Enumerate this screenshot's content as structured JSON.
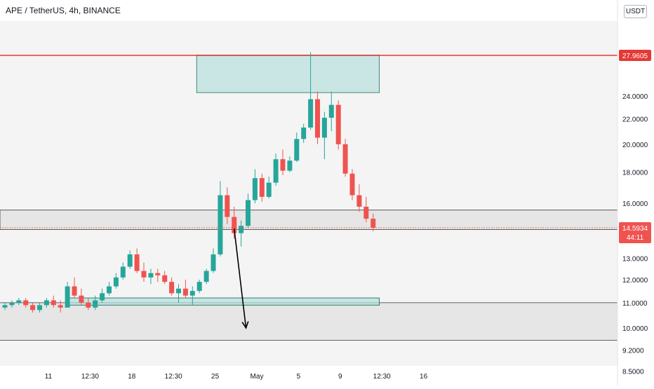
{
  "header": {
    "title": "APE / TetherUS, 4h, BINANCE",
    "currency": "USDT"
  },
  "colors": {
    "up": "#26a69a",
    "down": "#ef5350",
    "resistance_line": "#e53935",
    "supply_zone": "#b2dfdb",
    "zone_border": "#1f6f5f",
    "grey_band": "#e6e6e6",
    "current_price_line": "#ef5350",
    "arrow": "#000000"
  },
  "chart_data": {
    "type": "candlestick",
    "symbol": "APE/USDT",
    "timeframe": "4h",
    "scale": "log",
    "ylim": [
      8.2,
      31
    ],
    "yticks": [
      "8.5000",
      "9.2000",
      "10.0000",
      "11.0000",
      "12.0000",
      "13.0000",
      "16.0000",
      "18.0000",
      "20.0000",
      "22.0000",
      "24.0000"
    ],
    "ytick_values": [
      8.5,
      9.2,
      10.0,
      11.0,
      12.0,
      13.0,
      16.0,
      18.0,
      20.0,
      22.0,
      24.0
    ],
    "xticks": [
      "11",
      "12:30",
      "18",
      "12:30",
      "25",
      "May",
      "5",
      "9",
      "12:30",
      "16"
    ],
    "xtick_positions": [
      0,
      6,
      12,
      18,
      24,
      30,
      36,
      42,
      48,
      54
    ],
    "price_label": "27.9605",
    "resistance_price": 27.9605,
    "current_price": 14.5934,
    "current_price_label": "14.5934",
    "countdown": "44:11",
    "supply_zone": {
      "x_range": [
        27.6,
        53.9
      ],
      "price_range": [
        24.3,
        28.0
      ]
    },
    "range_band": {
      "price_range": [
        14.5,
        15.6
      ]
    },
    "support_zone": {
      "x_range": [
        9.2,
        53.9
      ],
      "price_range": [
        10.9,
        11.2
      ]
    },
    "lower_band": {
      "price_range": [
        9.55,
        11.0
      ]
    },
    "projection": {
      "from": [
        33.0,
        14.55
      ],
      "to": [
        34.7,
        10.0
      ]
    },
    "candles": [
      [
        10.8,
        11.0,
        10.7,
        10.9
      ],
      [
        10.9,
        11.1,
        10.8,
        11.0
      ],
      [
        11.0,
        11.2,
        10.9,
        11.1
      ],
      [
        11.1,
        11.2,
        10.8,
        10.9
      ],
      [
        10.9,
        11.0,
        10.6,
        10.7
      ],
      [
        10.7,
        11.0,
        10.6,
        10.9
      ],
      [
        10.9,
        11.2,
        10.8,
        11.1
      ],
      [
        11.1,
        11.3,
        10.8,
        10.9
      ],
      [
        10.9,
        11.1,
        10.6,
        10.8
      ],
      [
        10.8,
        11.9,
        10.8,
        11.7
      ],
      [
        11.7,
        12.1,
        11.2,
        11.3
      ],
      [
        11.3,
        11.6,
        10.9,
        11.0
      ],
      [
        11.0,
        11.2,
        10.7,
        10.8
      ],
      [
        10.8,
        11.3,
        10.7,
        11.1
      ],
      [
        11.1,
        11.6,
        11.0,
        11.4
      ],
      [
        11.4,
        11.9,
        11.3,
        11.7
      ],
      [
        11.7,
        12.3,
        11.6,
        12.1
      ],
      [
        12.1,
        12.8,
        12.0,
        12.6
      ],
      [
        12.6,
        13.4,
        12.5,
        13.2
      ],
      [
        13.2,
        13.5,
        12.3,
        12.4
      ],
      [
        12.4,
        12.8,
        11.9,
        12.1
      ],
      [
        12.1,
        12.5,
        11.8,
        12.3
      ],
      [
        12.3,
        12.5,
        11.9,
        12.2
      ],
      [
        12.2,
        12.4,
        11.8,
        11.9
      ],
      [
        11.9,
        12.1,
        11.3,
        11.4
      ],
      [
        11.4,
        11.8,
        11.0,
        11.6
      ],
      [
        11.6,
        12.0,
        11.2,
        11.3
      ],
      [
        11.3,
        11.7,
        10.9,
        11.5
      ],
      [
        11.5,
        12.0,
        11.4,
        11.9
      ],
      [
        11.9,
        12.5,
        11.8,
        12.4
      ],
      [
        12.4,
        13.5,
        12.3,
        13.2
      ],
      [
        13.2,
        17.4,
        13.1,
        16.5
      ],
      [
        16.5,
        17.0,
        14.8,
        15.2
      ],
      [
        15.2,
        15.8,
        14.0,
        14.3
      ],
      [
        14.3,
        15.0,
        13.6,
        14.7
      ],
      [
        14.7,
        16.6,
        14.6,
        16.2
      ],
      [
        16.2,
        18.2,
        16.0,
        17.6
      ],
      [
        17.6,
        17.9,
        16.1,
        16.4
      ],
      [
        16.4,
        17.7,
        16.3,
        17.3
      ],
      [
        17.3,
        19.3,
        17.1,
        18.9
      ],
      [
        18.9,
        19.6,
        17.8,
        18.1
      ],
      [
        18.1,
        19.1,
        18.0,
        18.8
      ],
      [
        18.8,
        20.9,
        18.7,
        20.4
      ],
      [
        20.4,
        21.6,
        20.1,
        21.3
      ],
      [
        21.3,
        28.3,
        21.1,
        23.7
      ],
      [
        23.7,
        24.4,
        20.0,
        20.5
      ],
      [
        20.5,
        22.6,
        18.9,
        22.1
      ],
      [
        22.1,
        24.4,
        21.0,
        23.2
      ],
      [
        23.2,
        23.6,
        19.6,
        20.0
      ],
      [
        20.0,
        20.4,
        17.7,
        17.9
      ],
      [
        17.9,
        18.2,
        16.2,
        16.5
      ],
      [
        16.5,
        17.2,
        15.5,
        15.8
      ],
      [
        15.8,
        16.4,
        14.9,
        15.1
      ],
      [
        15.1,
        15.4,
        14.4,
        14.6
      ]
    ]
  }
}
